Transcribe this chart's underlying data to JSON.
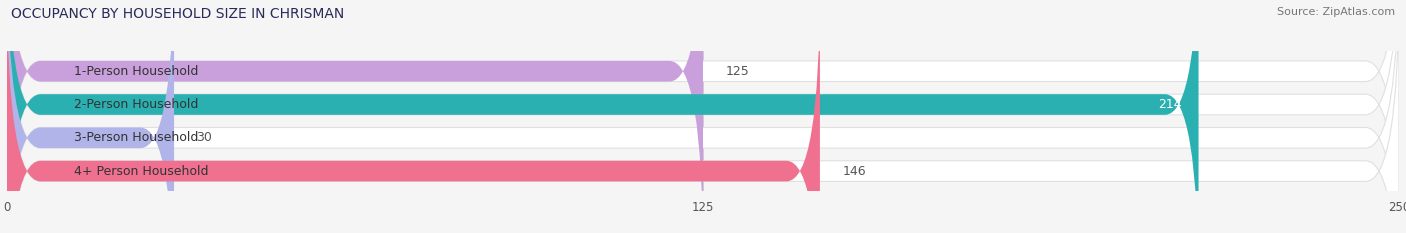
{
  "title": "OCCUPANCY BY HOUSEHOLD SIZE IN CHRISMAN",
  "source": "Source: ZipAtlas.com",
  "categories": [
    "1-Person Household",
    "2-Person Household",
    "3-Person Household",
    "4+ Person Household"
  ],
  "values": [
    125,
    214,
    30,
    146
  ],
  "bar_colors": [
    "#c9a0dc",
    "#2ab0b0",
    "#b0b4e8",
    "#f07090"
  ],
  "bar_bg_color": "#ffffff",
  "bar_border_color": "#e0e0e0",
  "xlim": [
    0,
    250
  ],
  "xticks": [
    0,
    125,
    250
  ],
  "figsize": [
    14.06,
    2.33
  ],
  "dpi": 100,
  "title_fontsize": 10,
  "source_fontsize": 8,
  "label_fontsize": 9,
  "value_fontsize": 9,
  "bar_height": 0.62,
  "background_color": "#f5f5f5"
}
